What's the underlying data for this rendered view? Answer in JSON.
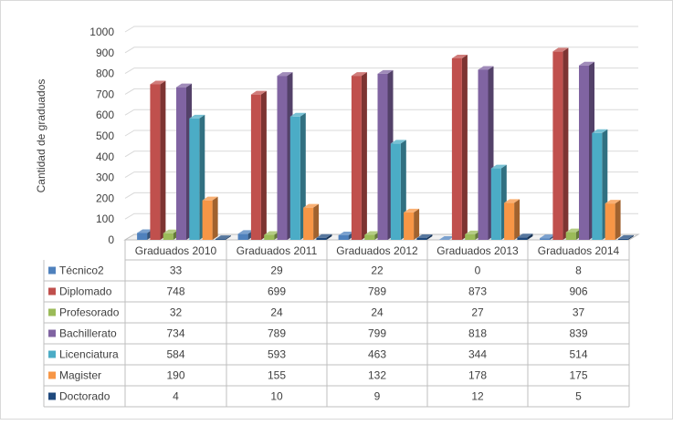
{
  "chart_data": {
    "type": "bar",
    "title": "",
    "xlabel": "",
    "ylabel": "Cantidad de graduados",
    "ylim": [
      0,
      1000
    ],
    "ytick_step": 100,
    "yticks": [
      "0",
      "100",
      "200",
      "300",
      "400",
      "500",
      "600",
      "700",
      "800",
      "900",
      "1000"
    ],
    "grid": true,
    "legend": "data-table-below",
    "categories": [
      "Graduados 2010",
      "Graduados 2011",
      "Graduados 2012",
      "Graduados 2013",
      "Graduados 2014"
    ],
    "series": [
      {
        "name": "Técnico2",
        "color": "#4f81bd",
        "values": [
          33,
          29,
          22,
          0,
          8
        ]
      },
      {
        "name": "Diplomado",
        "color": "#c0504d",
        "values": [
          748,
          699,
          789,
          873,
          906
        ]
      },
      {
        "name": "Profesorado",
        "color": "#9bbb59",
        "values": [
          32,
          24,
          24,
          27,
          37
        ]
      },
      {
        "name": "Bachillerato",
        "color": "#8064a2",
        "values": [
          734,
          789,
          799,
          818,
          839
        ]
      },
      {
        "name": "Licenciatura",
        "color": "#4bacc6",
        "values": [
          584,
          593,
          463,
          344,
          514
        ]
      },
      {
        "name": "Magister",
        "color": "#f79646",
        "values": [
          190,
          155,
          132,
          178,
          175
        ]
      },
      {
        "name": "Doctorado",
        "color": "#1f497d",
        "values": [
          4,
          10,
          9,
          12,
          5
        ]
      }
    ]
  }
}
